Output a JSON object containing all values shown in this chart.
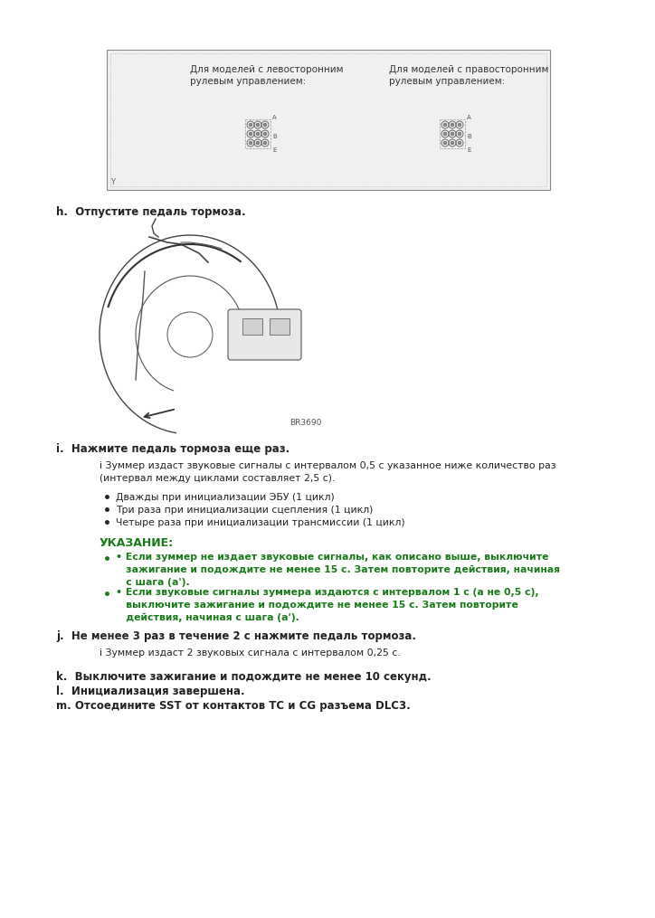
{
  "bg_color": "#ffffff",
  "text_color": "#222222",
  "green_color": "#1a7a1a",
  "dark_color": "#222222",
  "gray_color": "#555555",
  "top_box_left_label": "Для моделей с левосторонним\nрулевым управлением:",
  "top_box_right_label": "Для моделей с правосторонним\nрулевым управлением:",
  "step_h": "h.  Отпустите педаль тормоза.",
  "image_label": "BR3690",
  "step_i": "i.  Нажмите педаль тормоза еще раз.",
  "note_i_line1": "і Зуммер издаст звуковые сигналы с интервалом 0,5 с указанное ниже количество раз",
  "note_i_line2": "(интервал между циклами составляет 2,5 с).",
  "bullets_i": [
    "Дважды при инициализации ЭБУ (1 цикл)",
    "Три раза при инициализации сцепления (1 цикл)",
    "Четыре раза при инициализации трансмиссии (1 цикл)"
  ],
  "warning_title": "УКАЗАНИЕ:",
  "warning_bullet1_lines": [
    "Если зуммер не издает звуковые сигналы, как описано выше, выключите",
    "зажигание и подождите не менее 15 с. Затем повторите действия, начиная",
    "с шага (а')."
  ],
  "warning_bullet2_lines": [
    "Если звуковые сигналы зуммера издаются с интервалом 1 с (а не 0,5 с),",
    "выключите зажигание и подождите не менее 15 с. Затем повторите",
    "действия, начиная с шага (а')."
  ],
  "step_j": "j.  Не менее 3 раз в течение 2 с нажмите педаль тормоза.",
  "note_j": "і Зуммер издаст 2 звуковых сигнала с интервалом 0,25 с.",
  "step_k": "k.  Выключите зажигание и подождите не менее 10 секунд.",
  "step_l": "l.  Инициализация завершена.",
  "step_m": "m. Отсоедините SST от контактов TC и CG разъема DLC3."
}
